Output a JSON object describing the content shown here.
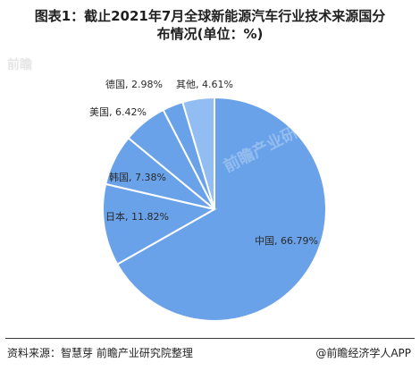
{
  "header": {
    "title_line1": "图表1：截止2021年7月全球新能源汽车行业技术来源国分",
    "title_line2": "布情况(单位：%)"
  },
  "footer": {
    "source": "资料来源：智慧芽 前瞻产业研究院整理",
    "brand": "@前瞻经济学人APP"
  },
  "watermark": {
    "corner_text": "前瞻",
    "center_text": "前瞻产业研究院"
  },
  "chart_data": {
    "type": "pie",
    "title": "图表1：截止2021年7月全球新能源汽车行业技术来源国分布情况(单位：%)",
    "slices": [
      {
        "label": "中国",
        "value": 66.79,
        "display": "中国, 66.79%",
        "color": "#6aa2e9"
      },
      {
        "label": "日本",
        "value": 11.82,
        "display": "日本, 11.82%",
        "color": "#6aa2e9"
      },
      {
        "label": "韩国",
        "value": 7.38,
        "display": "韩国, 7.38%",
        "color": "#6aa2e9"
      },
      {
        "label": "美国",
        "value": 6.42,
        "display": "美国, 6.42%",
        "color": "#6aa2e9"
      },
      {
        "label": "德国",
        "value": 2.98,
        "display": "德国, 2.98%",
        "color": "#6aa2e9"
      },
      {
        "label": "其他",
        "value": 4.61,
        "display": "其他, 4.61%",
        "color": "#91bdf2"
      }
    ]
  }
}
